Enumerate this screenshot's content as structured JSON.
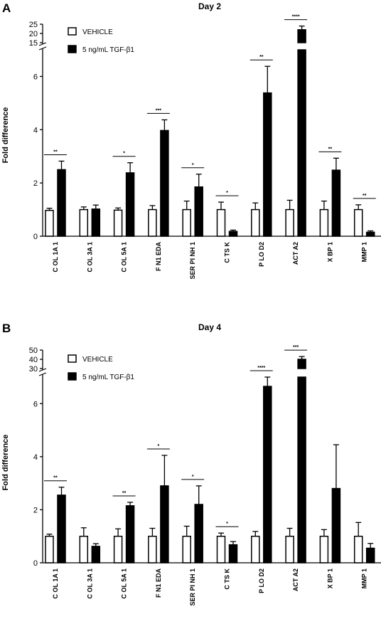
{
  "chart_data": [
    {
      "type": "bar",
      "panel": "A",
      "title": "Day 2",
      "ylabel": "Fold difference",
      "xlabel": "",
      "categories": [
        "C OL 1A 1",
        "C OL 3A 1",
        "C OL 5A 1",
        "F N1  EDA",
        "SER PI NH 1",
        "C TS K",
        "P LO D2",
        "ACT A2",
        "X BP 1",
        "MMP 1"
      ],
      "series": [
        {
          "name": "VEHICLE",
          "values": [
            0.97,
            1.0,
            0.98,
            1.0,
            1.0,
            1.0,
            1.0,
            1.0,
            1.0,
            1.0
          ],
          "errors": [
            0.08,
            0.1,
            0.08,
            0.15,
            0.32,
            0.28,
            0.25,
            0.35,
            0.32,
            0.18
          ]
        },
        {
          "name": "5 ng/mL TGF-β1",
          "values": [
            2.5,
            1.02,
            2.38,
            3.97,
            1.85,
            0.18,
            5.38,
            22.0,
            2.48,
            0.15
          ],
          "errors": [
            0.32,
            0.15,
            0.38,
            0.4,
            0.48,
            0.05,
            1.0,
            2.0,
            0.45,
            0.05
          ]
        }
      ],
      "significance": [
        "**",
        "",
        "*",
        "***",
        "*",
        "*",
        "**",
        "****",
        "**",
        "**"
      ],
      "ylim_lower": [
        0,
        7
      ],
      "ylim_upper": [
        15,
        25
      ],
      "yticks_lower": [
        "0",
        "2",
        "4",
        "6"
      ],
      "yticks_upper": [
        "15",
        "20",
        "25"
      ],
      "legend_position": "top-left"
    },
    {
      "type": "bar",
      "panel": "B",
      "title": "Day 4",
      "ylabel": "Fold difference",
      "xlabel": "",
      "categories": [
        "C OL 1A 1",
        "C OL 3A 1",
        "C OL 5A 1",
        "F N1  EDA",
        "SER PI NH 1",
        "C TS K",
        "P LO D2",
        "ACT A2",
        "X BP 1",
        "MMP 1"
      ],
      "series": [
        {
          "name": "VEHICLE",
          "values": [
            1.0,
            1.0,
            1.0,
            1.0,
            1.0,
            1.0,
            1.0,
            1.0,
            1.0,
            1.0
          ],
          "errors": [
            0.08,
            0.32,
            0.28,
            0.3,
            0.38,
            0.12,
            0.18,
            0.3,
            0.25,
            0.52
          ]
        },
        {
          "name": "5 ng/mL TGF-β1",
          "values": [
            2.55,
            0.62,
            2.15,
            2.9,
            2.2,
            0.68,
            6.65,
            40.0,
            2.8,
            0.55
          ],
          "errors": [
            0.3,
            0.1,
            0.13,
            1.15,
            0.7,
            0.12,
            0.35,
            3.0,
            1.65,
            0.18
          ]
        }
      ],
      "significance": [
        "**",
        "",
        "**",
        "*",
        "*",
        "*",
        "****",
        "***",
        "",
        ""
      ],
      "ylim_lower": [
        0,
        7
      ],
      "ylim_upper": [
        30,
        50
      ],
      "yticks_lower": [
        "0",
        "2",
        "4",
        "6"
      ],
      "yticks_upper": [
        "30",
        "40",
        "50"
      ],
      "legend_position": "top-left"
    }
  ]
}
